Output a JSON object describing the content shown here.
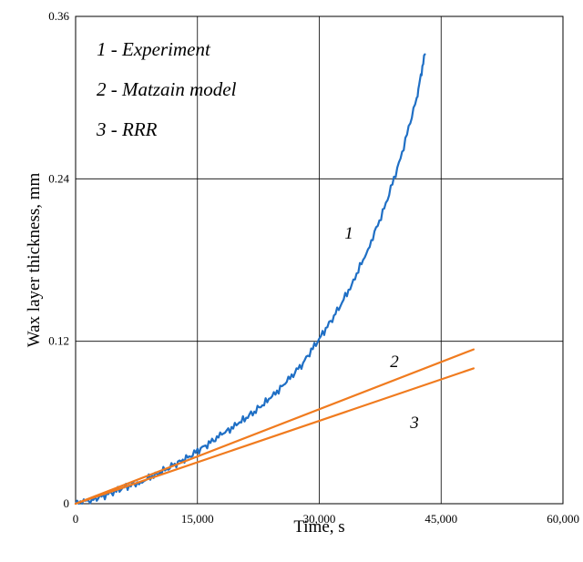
{
  "chart_data": {
    "type": "line",
    "title": "",
    "xlabel": "Time, s",
    "ylabel": "Wax layer thickness, mm",
    "xlim": [
      0,
      60000
    ],
    "ylim": [
      0,
      0.36
    ],
    "x_ticks": [
      0,
      15000,
      30000,
      45000,
      60000
    ],
    "x_tick_labels": [
      "0",
      "15,000",
      "30,000",
      "45,000",
      "60,000"
    ],
    "y_ticks": [
      0,
      0.12,
      0.24,
      0.36
    ],
    "y_tick_labels": [
      "0",
      "0.12",
      "0.24",
      "0.36"
    ],
    "grid": true,
    "legend": {
      "placement": "top-left",
      "entries": [
        "1 - Experiment",
        "2 - Matzain model",
        "3 - RRR"
      ]
    },
    "series": [
      {
        "label": "1",
        "color": "#1f6fc5",
        "x": [
          0,
          2000,
          4000,
          6000,
          8000,
          10000,
          12000,
          14000,
          16000,
          18000,
          20000,
          22000,
          24000,
          26000,
          28000,
          30000,
          32000,
          34000,
          36000,
          38000,
          40000,
          42000,
          43000
        ],
        "y": [
          0,
          0.003,
          0.007,
          0.012,
          0.016,
          0.022,
          0.028,
          0.035,
          0.043,
          0.051,
          0.059,
          0.068,
          0.078,
          0.09,
          0.104,
          0.122,
          0.14,
          0.162,
          0.188,
          0.218,
          0.255,
          0.3,
          0.332
        ]
      },
      {
        "label": "2",
        "color": "#f07b1f",
        "x": [
          0,
          49000
        ],
        "y": [
          0,
          0.114
        ]
      },
      {
        "label": "3",
        "color": "#f07b1f",
        "x": [
          0,
          49000
        ],
        "y": [
          0,
          0.1
        ]
      }
    ]
  }
}
